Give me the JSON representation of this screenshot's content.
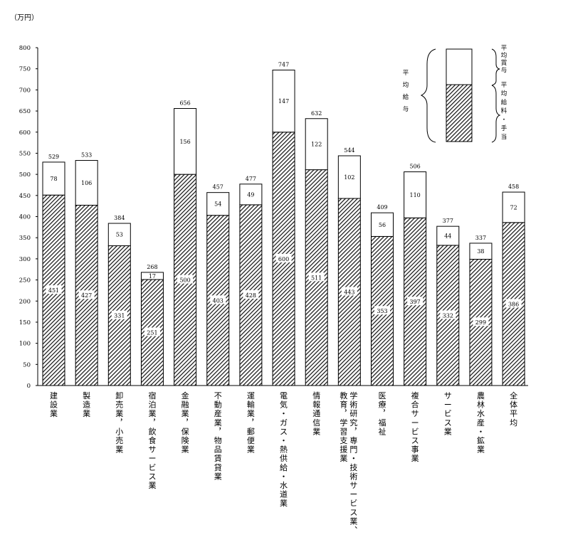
{
  "chart_data": {
    "type": "bar",
    "stacked": true,
    "unit_label": "（万円）",
    "ylim": [
      0,
      800
    ],
    "yticks": [
      0,
      50,
      100,
      150,
      200,
      250,
      300,
      350,
      400,
      450,
      500,
      550,
      600,
      650,
      700,
      750,
      800
    ],
    "categories": [
      "建設業",
      "製造業",
      "卸売業，小売業",
      "宿泊業，飲食サービス業",
      "金融業，保険業",
      "不動産業，物品賃貸業",
      "運輸業，郵便業",
      "電気・ガス・熱供給・水道業",
      "情報通信業",
      [
        "学術研究，専門・技術サービス業、",
        "教育，学習支援業"
      ],
      "医療，福祉",
      "複合サービス事業",
      "サービス業",
      "農林水産・鉱業",
      "全体平均"
    ],
    "series": [
      {
        "name": "平均給料・手当",
        "pattern": "hatch",
        "values": [
          451,
          427,
          331,
          251,
          500,
          403,
          428,
          600,
          511,
          443,
          353,
          397,
          332,
          299,
          386
        ]
      },
      {
        "name": "平均賞与",
        "pattern": "plain",
        "values": [
          78,
          106,
          53,
          17,
          156,
          54,
          49,
          147,
          122,
          102,
          56,
          110,
          44,
          38,
          72
        ]
      }
    ],
    "totals": [
      529,
      533,
      384,
      268,
      656,
      457,
      477,
      747,
      632,
      544,
      409,
      506,
      377,
      337,
      458
    ],
    "legend": {
      "brace_label": "平均給与",
      "upper": "平均賞与",
      "lower": "平均給料・手当",
      "placement": "top-right"
    },
    "grid": false
  }
}
